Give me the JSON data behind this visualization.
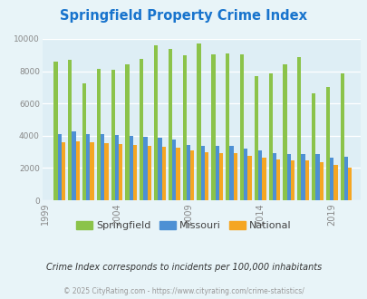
{
  "title": "Springfield Property Crime Index",
  "title_color": "#1874CD",
  "background_color": "#e8f4f8",
  "plot_bg_color": "#deeef5",
  "years": [
    2000,
    2001,
    2002,
    2003,
    2004,
    2005,
    2006,
    2007,
    2008,
    2009,
    2010,
    2011,
    2012,
    2013,
    2014,
    2015,
    2016,
    2017,
    2018,
    2019,
    2020
  ],
  "springfield": [
    8600,
    8700,
    7250,
    8150,
    8100,
    8400,
    8750,
    9600,
    9350,
    9000,
    9700,
    9050,
    9100,
    9050,
    7700,
    7850,
    8450,
    8900,
    6600,
    7000,
    7850
  ],
  "missouri": [
    4100,
    4250,
    4100,
    4100,
    4050,
    4000,
    3950,
    3850,
    3750,
    3450,
    3400,
    3350,
    3350,
    3200,
    3100,
    2950,
    2850,
    2850,
    2850,
    2650,
    2700
  ],
  "national": [
    3600,
    3650,
    3600,
    3550,
    3500,
    3450,
    3380,
    3320,
    3250,
    3100,
    3000,
    2950,
    2950,
    2750,
    2650,
    2550,
    2500,
    2450,
    2350,
    2200,
    2050
  ],
  "springfield_color": "#8bc34a",
  "missouri_color": "#4d90d4",
  "national_color": "#f5a623",
  "ylim": [
    0,
    10000
  ],
  "yticks": [
    0,
    2000,
    4000,
    6000,
    8000,
    10000
  ],
  "xtick_labels": [
    "1999",
    "2004",
    "2009",
    "2014",
    "2019"
  ],
  "xtick_positions": [
    1999,
    2004,
    2009,
    2014,
    2019
  ],
  "footnote": "Crime Index corresponds to incidents per 100,000 inhabitants",
  "copyright": "© 2025 CityRating.com - https://www.cityrating.com/crime-statistics/",
  "legend_labels": [
    "Springfield",
    "Missouri",
    "National"
  ],
  "bar_width": 0.27
}
